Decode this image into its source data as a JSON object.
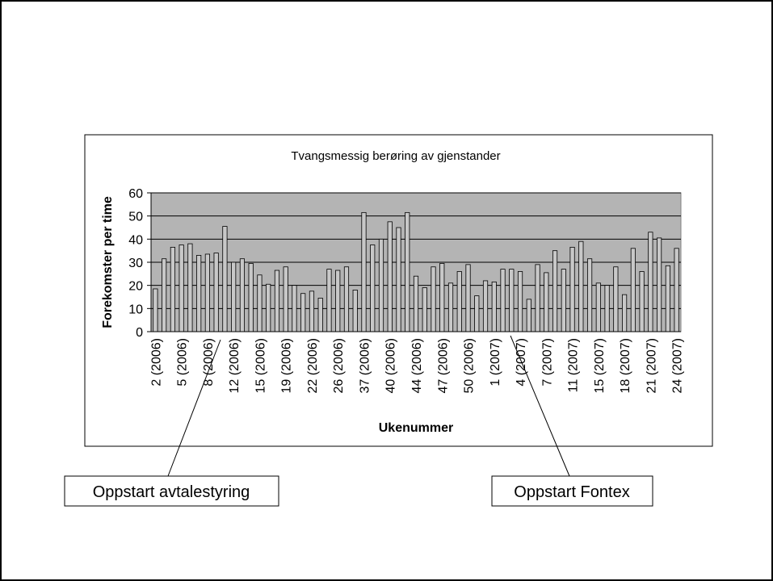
{
  "chart_data": {
    "type": "bar",
    "title": "Tvangsmessig berøring av gjenstander",
    "x_label": "Ukenummer",
    "y_label": "Forekomster per time",
    "categories": [
      "2 (2006)",
      null,
      null,
      "5 (2006)",
      null,
      null,
      "8 (2006)",
      null,
      null,
      "12 (2006)",
      null,
      null,
      "15 (2006)",
      null,
      null,
      "19 (2006)",
      null,
      null,
      "22 (2006)",
      null,
      null,
      "26 (2006)",
      null,
      null,
      "37 (2006)",
      null,
      null,
      "40 (2006)",
      null,
      null,
      "44 (2006)",
      null,
      null,
      "47 (2006)",
      null,
      null,
      "50 (2006)",
      null,
      null,
      "1 (2007)",
      null,
      null,
      "4 (2007)",
      null,
      null,
      "7 (2007)",
      null,
      null,
      "11 (2007)",
      null,
      null,
      "15 (2007)",
      null,
      null,
      "18 (2007)",
      null,
      null,
      "21 (2007)",
      null,
      null,
      "24 (2007)"
    ],
    "values": [
      18.5,
      31.5,
      36.5,
      37.5,
      38,
      33,
      33.5,
      34,
      45.5,
      30,
      31.5,
      29.5,
      24.5,
      20.5,
      26.5,
      28,
      20,
      16.5,
      17.5,
      14.5,
      27,
      26.5,
      28,
      18,
      51.5,
      37.5,
      40,
      47.5,
      45,
      51.5,
      24,
      19,
      28,
      29.5,
      21,
      26,
      29,
      15.5,
      22,
      21.5,
      27,
      27,
      26,
      14,
      29,
      25.5,
      35,
      27,
      36.5,
      39,
      31.5,
      21,
      20,
      28,
      16,
      36,
      26,
      43,
      40.5,
      28.5,
      36
    ],
    "color": "#c8c8c8",
    "plot_background": "#b4b4b4",
    "ylim": [
      0,
      60
    ],
    "yticks": [
      0,
      10,
      20,
      30,
      40,
      50,
      60
    ],
    "grid": true,
    "annotations": [
      "Oppstart avtalestyring",
      "Oppstart Fontex"
    ]
  }
}
